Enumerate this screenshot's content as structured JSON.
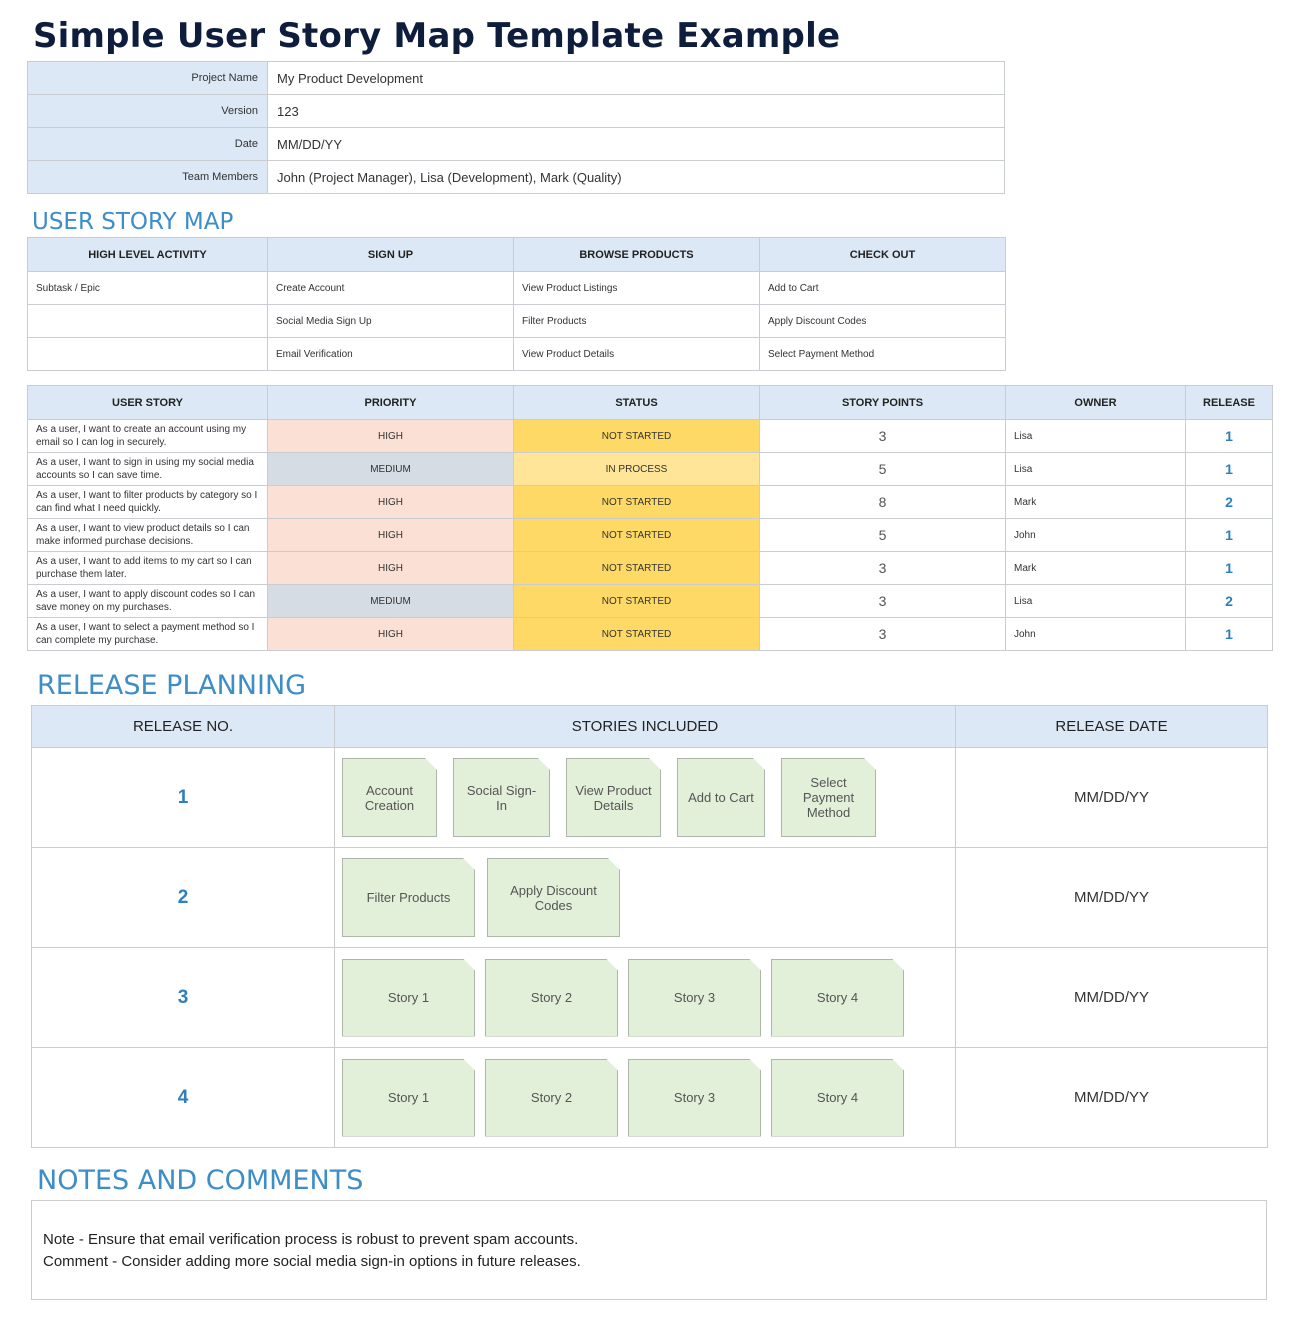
{
  "title": "Simple User Story Map Template Example",
  "project": [
    {
      "label": "Project Name",
      "value": "My Product Development"
    },
    {
      "label": "Version",
      "value": "123"
    },
    {
      "label": "Date",
      "value": "MM/DD/YY"
    },
    {
      "label": "Team Members",
      "value": "John (Project Manager), Lisa (Development), Mark (Quality)"
    }
  ],
  "map": {
    "heading": "USER STORY MAP",
    "headers": [
      "HIGH LEVEL ACTIVITY",
      "SIGN UP",
      "BROWSE PRODUCTS",
      "CHECK OUT"
    ],
    "rows": [
      [
        "Subtask / Epic",
        "Create Account",
        "View Product Listings",
        "Add to Cart"
      ],
      [
        "",
        "Social Media Sign Up",
        "Filter Products",
        "Apply Discount Codes"
      ],
      [
        "",
        "Email Verification",
        "View Product Details",
        "Select Payment Method"
      ]
    ]
  },
  "stories": {
    "headers": [
      "USER STORY",
      "PRIORITY",
      "STATUS",
      "STORY POINTS",
      "OWNER",
      "RELEASE"
    ],
    "rows": [
      {
        "story": "As a user, I want to create an account using my email so I can log in securely.",
        "priority": "HIGH",
        "status": "NOT STARTED",
        "points": "3",
        "owner": "Lisa",
        "release": "1"
      },
      {
        "story": "As a user, I want to sign in using my social media accounts so I can save time.",
        "priority": "MEDIUM",
        "status": "IN PROCESS",
        "points": "5",
        "owner": "Lisa",
        "release": "1"
      },
      {
        "story": "As a user, I want to filter products by category so I can find what I need quickly.",
        "priority": "HIGH",
        "status": "NOT STARTED",
        "points": "8",
        "owner": "Mark",
        "release": "2"
      },
      {
        "story": "As a user, I want to view product details so I can make informed purchase decisions.",
        "priority": "HIGH",
        "status": "NOT STARTED",
        "points": "5",
        "owner": "John",
        "release": "1"
      },
      {
        "story": "As a user, I want to add items to my cart so I can purchase them later.",
        "priority": "HIGH",
        "status": "NOT STARTED",
        "points": "3",
        "owner": "Mark",
        "release": "1"
      },
      {
        "story": "As a user, I want to apply discount codes so I can save money on my purchases.",
        "priority": "MEDIUM",
        "status": "NOT STARTED",
        "points": "3",
        "owner": "Lisa",
        "release": "2"
      },
      {
        "story": "As a user, I want to select a payment method so I can complete my purchase.",
        "priority": "HIGH",
        "status": "NOT STARTED",
        "points": "3",
        "owner": "John",
        "release": "1"
      }
    ]
  },
  "colors": {
    "header_bg": "#dce8f5",
    "priority_high": "#fbe1d5",
    "priority_medium": "#d6dce4",
    "status_not_started": "#fed966",
    "status_in_process": "#ffe598",
    "card_bg": "#e2efd9",
    "accent": "#3d8dc7"
  },
  "release_planning": {
    "heading": "RELEASE PLANNING",
    "headers": [
      "RELEASE NO.",
      "STORIES INCLUDED",
      "RELEASE DATE"
    ],
    "rows": [
      {
        "number": "1",
        "date": "MM/DD/YY",
        "stories": [
          "Account Creation",
          "Social Sign-In",
          "View Product Details",
          "Add to Cart",
          "Select Payment Method"
        ]
      },
      {
        "number": "2",
        "date": "MM/DD/YY",
        "stories": [
          "Filter Products",
          "Apply Discount Codes"
        ]
      },
      {
        "number": "3",
        "date": "MM/DD/YY",
        "stories": [
          "Story 1",
          "Story 2",
          "Story 3",
          "Story 4"
        ]
      },
      {
        "number": "4",
        "date": "MM/DD/YY",
        "stories": [
          "Story 1",
          "Story 2",
          "Story 3",
          "Story 4"
        ]
      }
    ]
  },
  "notes": {
    "heading": "NOTES AND COMMENTS",
    "lines": [
      "Note - Ensure that email verification process is robust to prevent spam accounts.",
      "Comment - Consider adding more social media sign-in options in future releases."
    ]
  }
}
